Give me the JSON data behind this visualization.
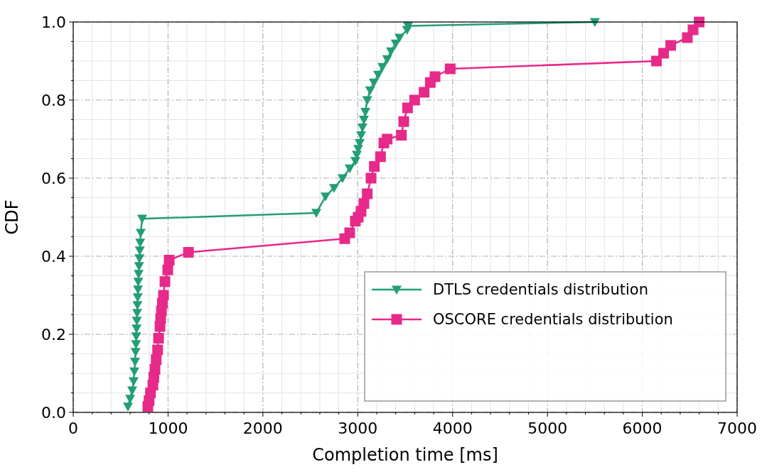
{
  "chart_data": {
    "type": "line",
    "xlabel": "Completion time [ms]",
    "ylabel": "CDF",
    "xlim": [
      0,
      7000
    ],
    "xticks": [
      0,
      1000,
      2000,
      3000,
      4000,
      5000,
      6000,
      7000
    ],
    "ylim": [
      0,
      1.0
    ],
    "yticks": [
      {
        "value": 0,
        "label": "0.0"
      },
      {
        "value": 0.2,
        "label": "0.2"
      },
      {
        "value": 0.4,
        "label": "0.4"
      },
      {
        "value": 0.6,
        "label": "0.6"
      },
      {
        "value": 0.8,
        "label": "0.8"
      },
      {
        "value": 1.0,
        "label": "1.0"
      }
    ],
    "grid": true,
    "legend": "bottom right",
    "series": [
      {
        "name": "DTLS credentials distribution",
        "color": "#229e77",
        "marker": "triangle",
        "x": [
          577,
          600,
          622,
          637,
          645,
          652,
          658,
          662,
          665,
          668,
          671,
          674,
          677,
          680,
          683,
          686,
          690,
          694,
          698,
          702,
          706,
          712,
          727,
          2563,
          2660,
          2750,
          2840,
          2915,
          2975,
          2990,
          3005,
          3020,
          3035,
          3050,
          3065,
          3080,
          3100,
          3130,
          3170,
          3215,
          3260,
          3310,
          3350,
          3400,
          3440,
          3520,
          3530,
          5500
        ],
        "values": [
          0.015,
          0.035,
          0.056,
          0.08,
          0.105,
          0.13,
          0.155,
          0.175,
          0.195,
          0.215,
          0.235,
          0.255,
          0.275,
          0.295,
          0.315,
          0.335,
          0.355,
          0.375,
          0.395,
          0.415,
          0.435,
          0.46,
          0.496,
          0.511,
          0.553,
          0.575,
          0.6,
          0.625,
          0.644,
          0.66,
          0.675,
          0.69,
          0.71,
          0.73,
          0.75,
          0.77,
          0.8,
          0.825,
          0.845,
          0.865,
          0.885,
          0.905,
          0.925,
          0.945,
          0.96,
          0.98,
          0.99,
          1.0
        ]
      },
      {
        "name": "OSCORE credentials distribution",
        "color": "#e7298a",
        "marker": "square",
        "x": [
          787,
          800,
          815,
          840,
          850,
          862,
          875,
          890,
          900,
          915,
          922,
          930,
          940,
          952,
          967,
          997,
          1012,
          1215,
          2863,
          2915,
          2975,
          3005,
          3035,
          3065,
          3100,
          3140,
          3175,
          3240,
          3275,
          3310,
          3460,
          3485,
          3525,
          3600,
          3700,
          3765,
          3815,
          3975,
          6150,
          6225,
          6300,
          6475,
          6535,
          6600
        ],
        "values": [
          0.015,
          0.03,
          0.05,
          0.07,
          0.09,
          0.11,
          0.135,
          0.16,
          0.19,
          0.22,
          0.24,
          0.26,
          0.28,
          0.3,
          0.335,
          0.365,
          0.39,
          0.41,
          0.445,
          0.46,
          0.49,
          0.5,
          0.515,
          0.535,
          0.56,
          0.6,
          0.63,
          0.655,
          0.69,
          0.7,
          0.71,
          0.745,
          0.78,
          0.8,
          0.82,
          0.845,
          0.86,
          0.88,
          0.9,
          0.92,
          0.94,
          0.96,
          0.98,
          1.0
        ]
      }
    ]
  }
}
